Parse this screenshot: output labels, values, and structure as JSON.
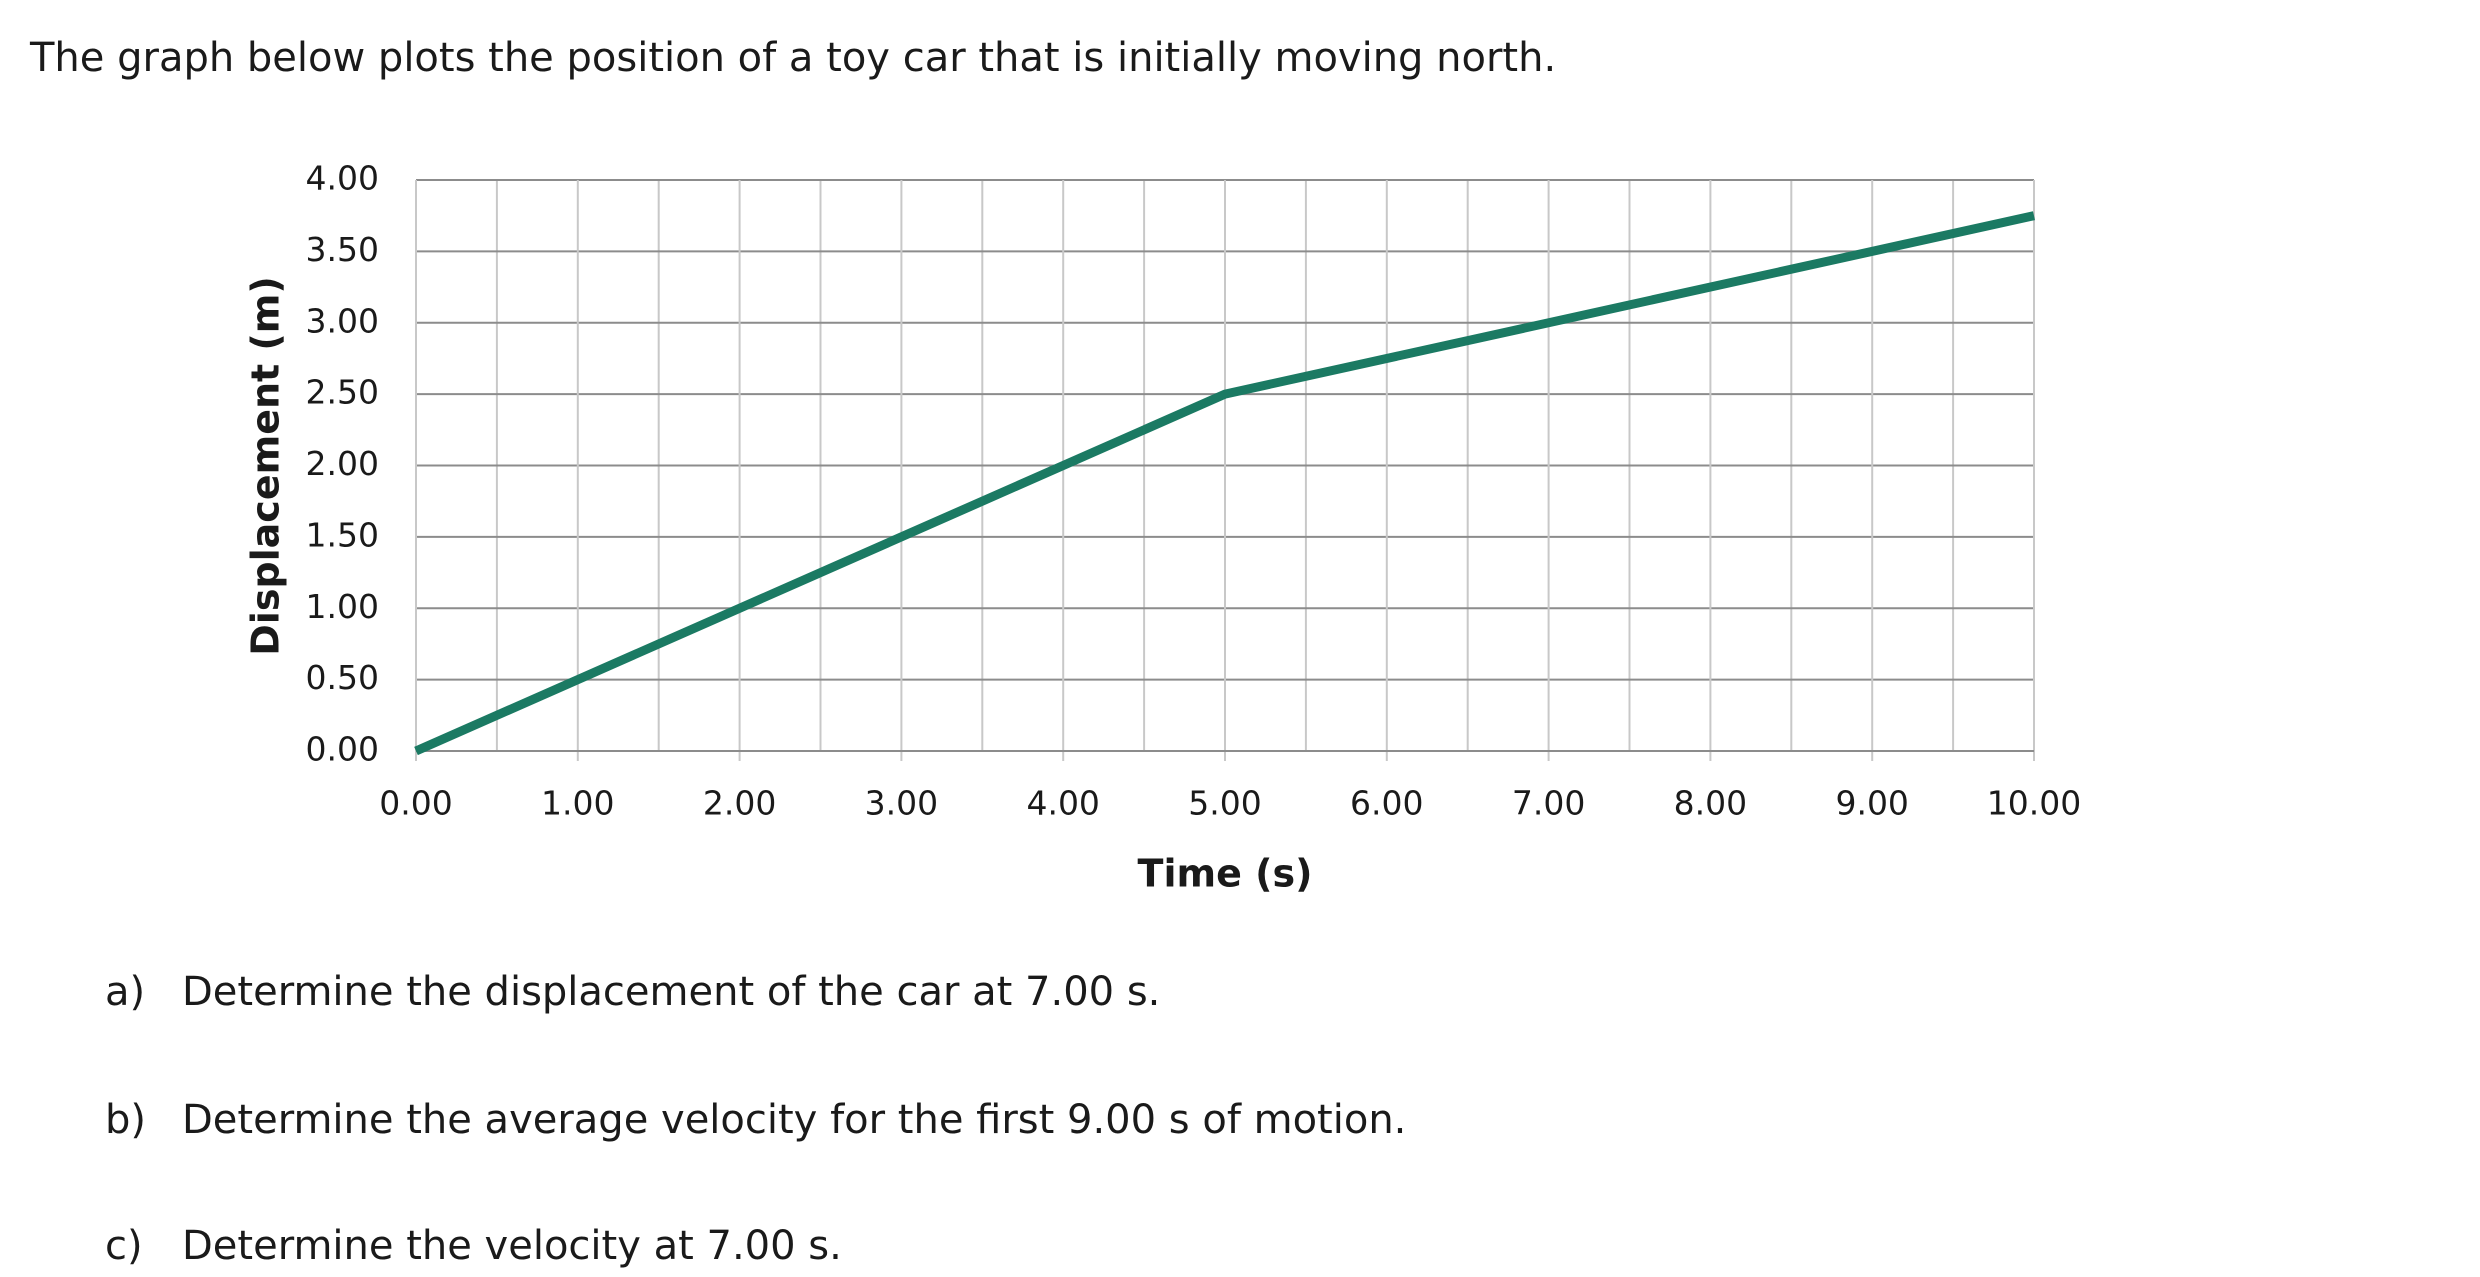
{
  "intro": "The graph below plots the position of a toy car that is initially moving north.",
  "chart_data": {
    "type": "line",
    "x_label": "Time (s)",
    "y_label": "Displacement (m)",
    "x": [
      0,
      5,
      10
    ],
    "series": [
      {
        "color": "#1b7a63",
        "values": [
          0,
          2.5,
          3.75
        ]
      }
    ],
    "xlim": [
      0,
      10
    ],
    "ylim": [
      0,
      4
    ],
    "xticks": [
      {
        "value": 0,
        "label": "0.00"
      },
      {
        "value": 1,
        "label": "1.00"
      },
      {
        "value": 2,
        "label": "2.00"
      },
      {
        "value": 3,
        "label": "3.00"
      },
      {
        "value": 4,
        "label": "4.00"
      },
      {
        "value": 5,
        "label": "5.00"
      },
      {
        "value": 6,
        "label": "6.00"
      },
      {
        "value": 7,
        "label": "7.00"
      },
      {
        "value": 8,
        "label": "8.00"
      },
      {
        "value": 9,
        "label": "9.00"
      },
      {
        "value": 10,
        "label": "10.00"
      }
    ],
    "x_minor_ticks": [
      0.5,
      1.5,
      2.5,
      3.5,
      4.5,
      5.5,
      6.5,
      7.5,
      8.5,
      9.5
    ],
    "yticks": [
      {
        "value": 0,
        "label": "0.00"
      },
      {
        "value": 0.5,
        "label": "0.50"
      },
      {
        "value": 1,
        "label": "1.00"
      },
      {
        "value": 1.5,
        "label": "1.50"
      },
      {
        "value": 2,
        "label": "2.00"
      },
      {
        "value": 2.5,
        "label": "2.50"
      },
      {
        "value": 3,
        "label": "3.00"
      },
      {
        "value": 3.5,
        "label": "3.50"
      },
      {
        "value": 4,
        "label": "4.00"
      }
    ],
    "grid": true
  },
  "questions": [
    {
      "label": "a)",
      "text": "Determine the displacement of the car at 7.00 s."
    },
    {
      "label": "b)",
      "text": "Determine the average velocity for the first 9.00 s of motion."
    },
    {
      "label": "c)",
      "text": "Determine the velocity at 7.00 s."
    }
  ]
}
